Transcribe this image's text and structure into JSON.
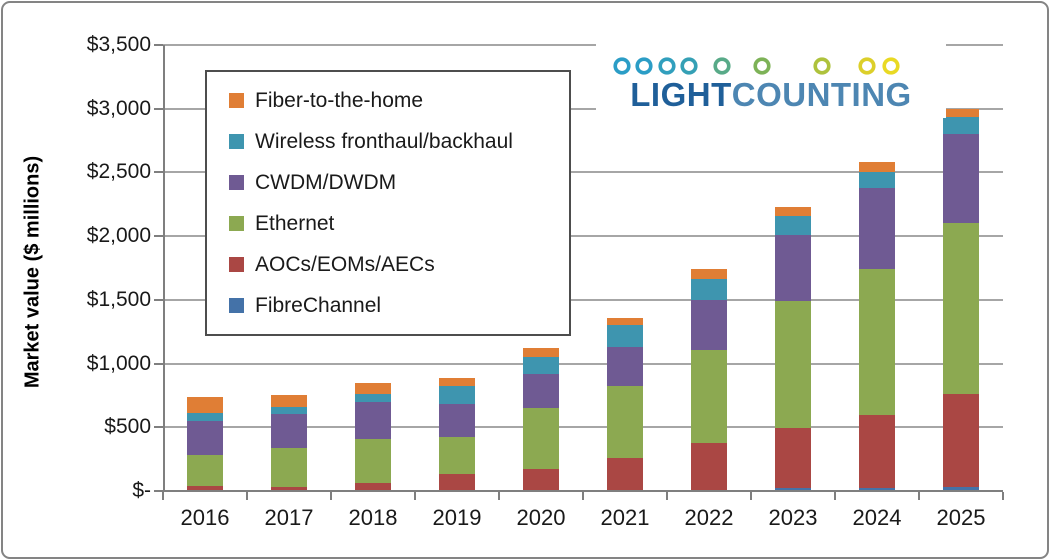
{
  "logo": {
    "light": "LIGHT",
    "counting": "COUNTING"
  },
  "chart_data": {
    "type": "bar",
    "stacked": true,
    "title": "",
    "ylabel": "Market value ($ millions)",
    "units": "$ millions",
    "ylim": [
      0,
      3500
    ],
    "ytick_interval": 500,
    "ytick_labels": [
      "$-",
      "$500",
      "$1,000",
      "$1,500",
      "$2,000",
      "$2,500",
      "$3,000",
      "$3,500"
    ],
    "grid": "horizontal",
    "legend_position": "upper left inside plot",
    "legend_order_top_to_bottom": [
      "Fiber-to-the-home",
      "Wireless fronthaul/backhaul",
      "CWDM/DWDM",
      "Ethernet",
      "AOCs/EOMs/AECs",
      "FibreChannel"
    ],
    "categories": [
      "2016",
      "2017",
      "2018",
      "2019",
      "2020",
      "2021",
      "2022",
      "2023",
      "2024",
      "2025"
    ],
    "series": [
      {
        "name": "FibreChannel",
        "color": "#4472a8",
        "values": [
          10,
          10,
          10,
          10,
          10,
          10,
          10,
          25,
          25,
          30
        ]
      },
      {
        "name": "AOCs/EOMs/AECs",
        "color": "#aa4744",
        "values": [
          30,
          25,
          55,
          120,
          165,
          250,
          370,
          470,
          575,
          730
        ]
      },
      {
        "name": "Ethernet",
        "color": "#8ca951",
        "values": [
          240,
          300,
          340,
          290,
          480,
          565,
          730,
          995,
          1140,
          1345
        ]
      },
      {
        "name": "CWDM/DWDM",
        "color": "#6f5a93",
        "values": [
          270,
          270,
          290,
          265,
          265,
          305,
          390,
          520,
          635,
          700
        ]
      },
      {
        "name": "Wireless fronthaul/backhaul",
        "color": "#3e95af",
        "values": [
          65,
          55,
          65,
          140,
          130,
          170,
          160,
          150,
          125,
          130
        ]
      },
      {
        "name": "Fiber-to-the-home",
        "color": "#e07e35",
        "values": [
          120,
          90,
          85,
          65,
          75,
          60,
          80,
          65,
          85,
          65
        ]
      }
    ],
    "totals": [
      735,
      750,
      845,
      890,
      1125,
      1360,
      1740,
      2225,
      2585,
      3000
    ]
  }
}
